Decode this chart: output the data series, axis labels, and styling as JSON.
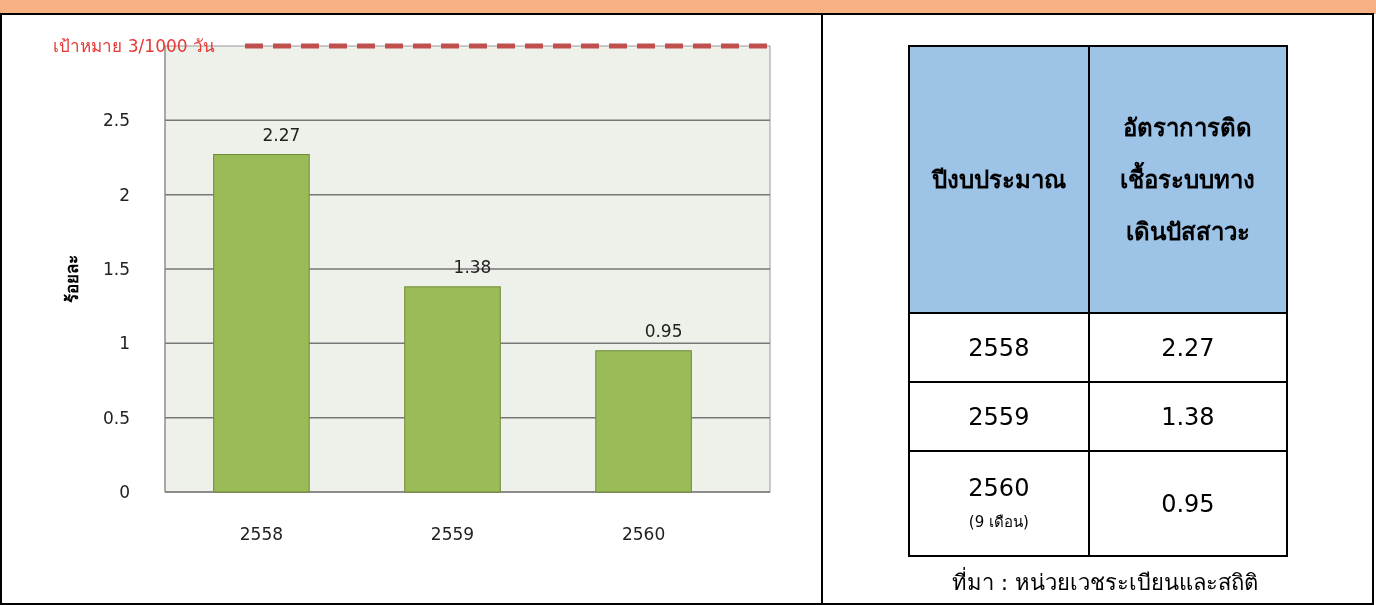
{
  "chart_data": {
    "type": "bar",
    "categories": [
      "2558",
      "2559",
      "2560"
    ],
    "values": [
      2.27,
      1.38,
      0.95
    ],
    "color": "#9bbb59",
    "ylabel": "ร้อยละ",
    "ylim": [
      0,
      3
    ],
    "yticks": [
      0,
      0.5,
      1,
      1.5,
      2,
      2.5
    ],
    "grid": "y",
    "value_labels": [
      "2.27",
      "1.38",
      "0.95"
    ],
    "ref_lines": [
      {
        "axis": "y",
        "value": 3,
        "label": "เป้าหมาย 3/1000  วัน",
        "color": "#c0504d",
        "line_style": "dashed"
      }
    ],
    "annotations": [
      "ปีงบประมาณ",
      "อัตราการติดเชื้อระบบทางเดินปัสสาวะ",
      "(9 เดือน)",
      "ที่มา : หน่วยเวชระเบียนและสถิติ"
    ]
  }
}
